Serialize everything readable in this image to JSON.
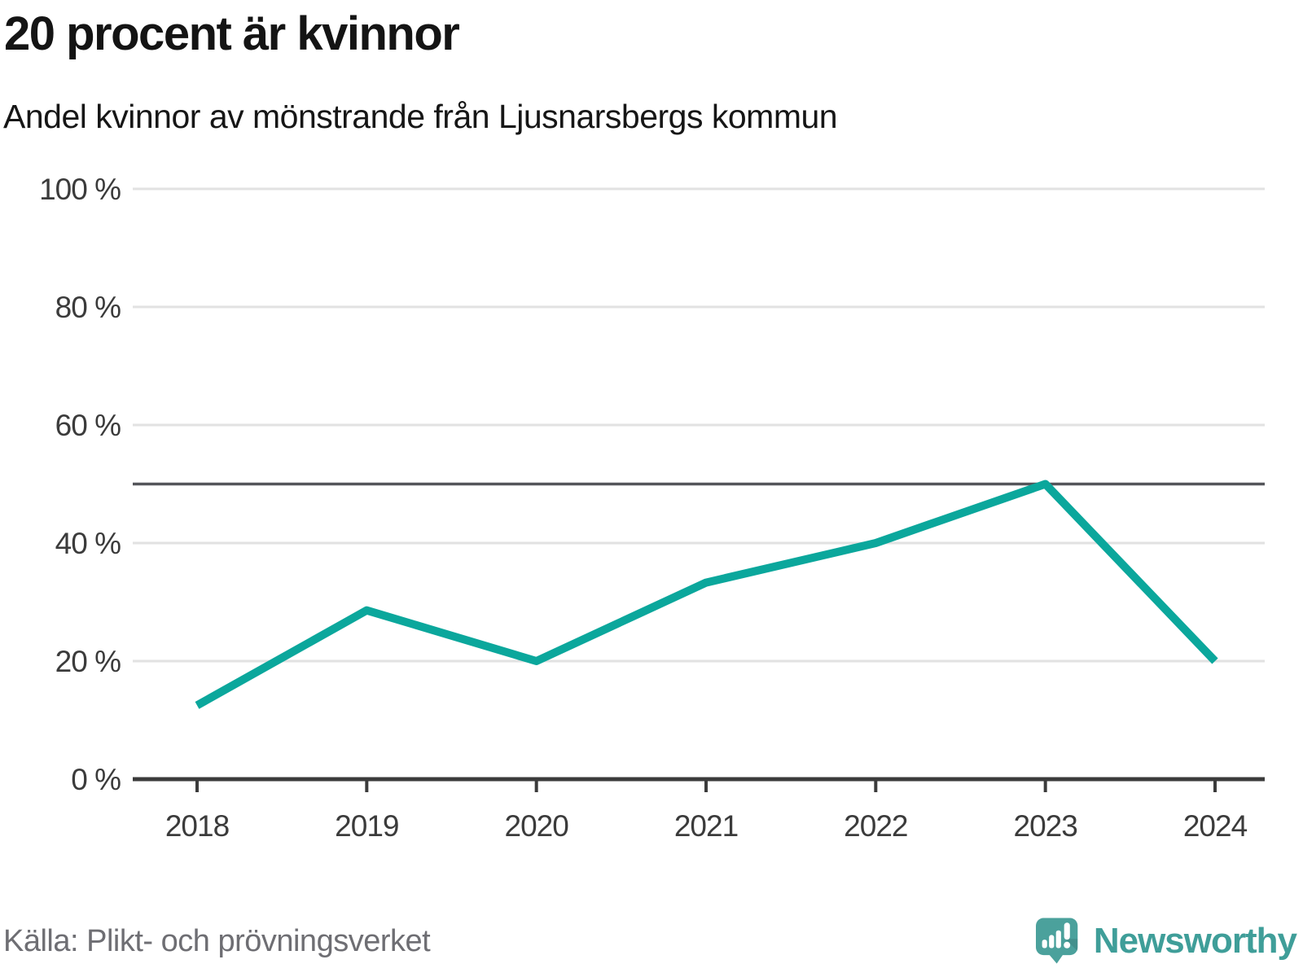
{
  "header": {
    "title": "20 procent är kvinnor",
    "subtitle": "Andel kvinnor av mönstrande från Ljusnarsbergs kommun"
  },
  "chart_data": {
    "type": "line",
    "x": [
      2018,
      2019,
      2020,
      2021,
      2022,
      2023,
      2024
    ],
    "series": [
      {
        "name": "andel-kvinnor",
        "values": [
          12.5,
          28.6,
          20,
          33.3,
          40,
          50,
          20
        ]
      }
    ],
    "title": "20 procent är kvinnor",
    "subtitle": "Andel kvinnor av mönstrande från Ljusnarsbergs kommun",
    "xlabel": "",
    "ylabel": "",
    "ylim": [
      0,
      100
    ],
    "yticks": [
      0,
      20,
      40,
      60,
      80,
      100
    ],
    "ytick_suffix": " %",
    "ref_line": {
      "value": 50
    },
    "grid": true,
    "legend": "none",
    "colors": {
      "accent": "#0ba79c",
      "grid": "#e2e2e2",
      "ref_line": "#54555a",
      "axis": "#3b3b3b"
    }
  },
  "footer": {
    "source": "Källa: Plikt- och prövningsverket",
    "brand": "Newsworthy",
    "brand_color": "#3f9e99",
    "logo_color": "#4ba19c"
  }
}
